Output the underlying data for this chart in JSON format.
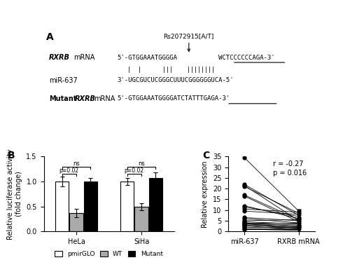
{
  "panel_A": {
    "label": "A",
    "rs_label": "Rs2072915[A/T]",
    "rxrb_label": "RXRB mRNA",
    "mir_label": "miR-637",
    "mutant_label": "Mutant RXRB mRNA",
    "binding_lines": "|  |      |||    ||||||||"
  },
  "panel_B": {
    "label": "B",
    "ylabel": "Relative luciferase activity\n(fold change)",
    "ylim": [
      0,
      1.5
    ],
    "yticks": [
      0.0,
      0.5,
      1.0,
      1.5
    ],
    "groups": [
      "HeLa",
      "SiHa"
    ],
    "bar_values": {
      "HeLa": {
        "pmirGLO": 1.0,
        "WT": 0.37,
        "Mutant": 1.0
      },
      "SiHa": {
        "pmirGLO": 1.0,
        "WT": 0.5,
        "Mutant": 1.07
      }
    },
    "bar_errors": {
      "HeLa": {
        "pmirGLO": 0.1,
        "WT": 0.08,
        "Mutant": 0.07
      },
      "SiHa": {
        "pmirGLO": 0.07,
        "WT": 0.07,
        "Mutant": 0.12
      }
    },
    "bar_colors": {
      "pmirGLO": "white",
      "WT": "#aaaaaa",
      "Mutant": "black"
    }
  },
  "panel_C": {
    "label": "C",
    "ylabel": "Relative expression",
    "xlabel_left": "miR-637",
    "xlabel_right": "RXRB mRNA",
    "ylim": [
      0,
      35
    ],
    "yticks": [
      0,
      5,
      10,
      15,
      20,
      25,
      30,
      35
    ],
    "r_text": "r = -0.27",
    "p_text": "p = 0.016",
    "miR637_values": [
      34.5,
      22.0,
      21.5,
      21.0,
      17.0,
      16.5,
      12.0,
      11.5,
      10.5,
      9.5,
      6.5,
      6.0,
      5.0,
      4.5,
      4.0,
      4.0,
      3.5,
      3.5,
      3.0,
      3.0,
      2.5,
      2.0,
      1.5,
      1.0,
      1.0
    ],
    "RXRB_values": [
      9.5,
      7.5,
      5.0,
      8.5,
      5.5,
      4.5,
      6.0,
      7.0,
      9.0,
      8.0,
      5.0,
      4.0,
      5.5,
      3.5,
      2.5,
      4.0,
      2.0,
      3.0,
      1.5,
      2.0,
      1.0,
      2.0,
      1.5,
      1.0,
      0.5
    ]
  }
}
